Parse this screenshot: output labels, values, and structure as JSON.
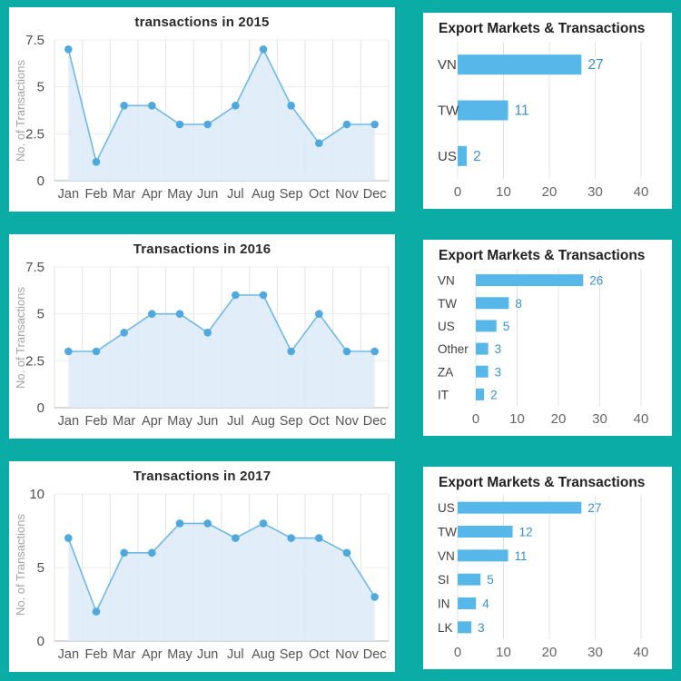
{
  "colors": {
    "background_teal": "#0BACA6",
    "panel_white": "#FFFFFF",
    "line_stroke": "#6FB8E7",
    "point_fill": "#4FA8DE",
    "area_fill": "#DCEBF8",
    "bar_fill": "#58B7E9",
    "value_label_blue": "#3990CE",
    "grid_line": "#E3E3E3",
    "grid_line_h": "#ECECEC",
    "axis_line": "#B3B3B3",
    "tick_text": "#4D4D4D",
    "month_text": "#555555",
    "category_text": "#3F3F3F",
    "xtick_text": "#666666",
    "muted_text": "#A3A3A3"
  },
  "chart_data": [
    {
      "id": "line-2015",
      "type": "line",
      "title": "transactions in 2015",
      "ylabel": "No. of Transactions",
      "categories": [
        "Jan",
        "Feb",
        "Mar",
        "Apr",
        "May",
        "Jun",
        "Jul",
        "Aug",
        "Sep",
        "Oct",
        "Nov",
        "Dec"
      ],
      "values": [
        7,
        1,
        4,
        4,
        3,
        3,
        4,
        7,
        4,
        2,
        3,
        3
      ],
      "yticks": [
        0,
        2.5,
        5,
        7.5
      ],
      "ylim": [
        0,
        7.5
      ],
      "grid": true,
      "legend": "none"
    },
    {
      "id": "bar-2015",
      "type": "bar",
      "title": "Export Markets & Transactions",
      "categories": [
        "VN",
        "TW",
        "US"
      ],
      "values": [
        27,
        11,
        2
      ],
      "xticks": [
        0,
        10,
        20,
        30,
        40
      ],
      "xlim": [
        0,
        40
      ],
      "orientation": "horizontal",
      "grid": true,
      "legend": "none"
    },
    {
      "id": "line-2016",
      "type": "line",
      "title": "Transactions in 2016",
      "ylabel": "No. of Transactions",
      "categories": [
        "Jan",
        "Feb",
        "Mar",
        "Apr",
        "May",
        "Jun",
        "Jul",
        "Aug",
        "Sep",
        "Oct",
        "Nov",
        "Dec"
      ],
      "values": [
        3,
        3,
        4,
        5,
        5,
        4,
        6,
        6,
        3,
        5,
        3,
        3
      ],
      "yticks": [
        0,
        2.5,
        5,
        7.5
      ],
      "ylim": [
        0,
        7.5
      ],
      "grid": true,
      "legend": "none"
    },
    {
      "id": "bar-2016",
      "type": "bar",
      "title": "Export Markets & Transactions",
      "categories": [
        "VN",
        "TW",
        "US",
        "Other",
        "ZA",
        "IT"
      ],
      "values": [
        26,
        8,
        5,
        3,
        3,
        2
      ],
      "xticks": [
        0,
        10,
        20,
        30,
        40
      ],
      "xlim": [
        0,
        40
      ],
      "orientation": "horizontal",
      "grid": true,
      "legend": "none"
    },
    {
      "id": "line-2017",
      "type": "line",
      "title": "Transactions in 2017",
      "ylabel": "No. of Transactions",
      "categories": [
        "Jan",
        "Feb",
        "Mar",
        "Apr",
        "May",
        "Jun",
        "Jul",
        "Aug",
        "Sep",
        "Oct",
        "Nov",
        "Dec"
      ],
      "values": [
        7,
        2,
        6,
        6,
        8,
        8,
        7,
        8,
        7,
        7,
        6,
        3
      ],
      "yticks": [
        0,
        5,
        10
      ],
      "ylim": [
        0,
        10
      ],
      "grid": true,
      "legend": "none"
    },
    {
      "id": "bar-2017",
      "type": "bar",
      "title": "Export Markets & Transactions",
      "categories": [
        "US",
        "TW",
        "VN",
        "SI",
        "IN",
        "LK"
      ],
      "values": [
        27,
        12,
        11,
        5,
        4,
        3
      ],
      "xticks": [
        0,
        10,
        20,
        30,
        40
      ],
      "xlim": [
        0,
        40
      ],
      "orientation": "horizontal",
      "grid": true,
      "legend": "none"
    }
  ]
}
